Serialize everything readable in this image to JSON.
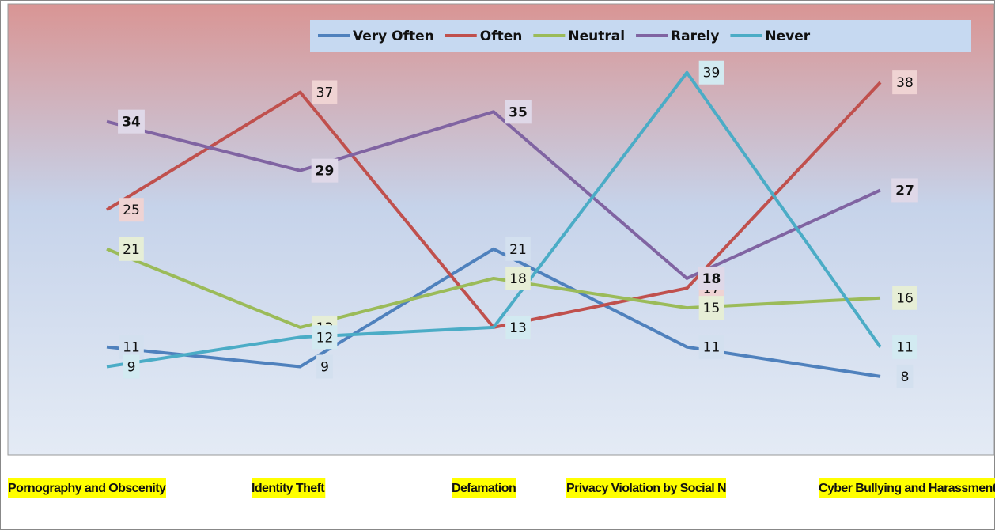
{
  "chart_data": {
    "type": "line",
    "categories": [
      "Pornography and Obscenity",
      "Identity Theft",
      "Defamation",
      "Privacy Violation  by Social N",
      "Cyber Bullying and Harassment"
    ],
    "series": [
      {
        "name": "Very Often",
        "color": "#4f81bd",
        "values": [
          11,
          9,
          21,
          11,
          8
        ]
      },
      {
        "name": "Often",
        "color": "#c0504d",
        "values": [
          25,
          37,
          13,
          17,
          38
        ]
      },
      {
        "name": "Neutral",
        "color": "#9bbb59",
        "values": [
          21,
          13,
          18,
          15,
          16
        ]
      },
      {
        "name": "Rarely",
        "color": "#8064a2",
        "values": [
          34,
          29,
          35,
          18,
          27
        ]
      },
      {
        "name": "Never",
        "color": "#4bacc6",
        "values": [
          9,
          12,
          13,
          39,
          11
        ]
      }
    ],
    "ylim": [
      0,
      46
    ],
    "legend": "top-right"
  }
}
